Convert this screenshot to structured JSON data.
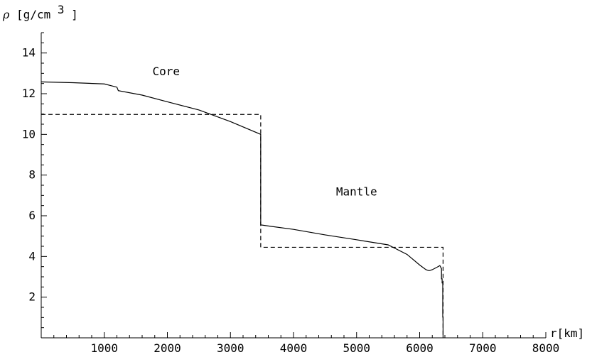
{
  "chart_data": {
    "type": "line",
    "title": "",
    "xlabel": "r[km]",
    "ylabel": {
      "symbol": "ρ",
      "unit_prefix": "[g/cm",
      "unit_exponent": "3",
      "unit_suffix": "]"
    },
    "xlim": [
      0,
      8000
    ],
    "ylim": [
      0,
      15
    ],
    "xticks": [
      1000,
      2000,
      3000,
      4000,
      5000,
      6000,
      7000,
      8000
    ],
    "yticks": [
      2,
      4,
      6,
      8,
      10,
      12,
      14
    ],
    "annotations": [
      {
        "text": "Core",
        "x": 1980,
        "y": 12.9
      },
      {
        "text": "Mantle",
        "x": 5000,
        "y": 7.0
      }
    ],
    "series": [
      {
        "style": "solid",
        "color": "#000000",
        "points": [
          [
            0,
            12.58
          ],
          [
            500,
            12.54
          ],
          [
            1000,
            12.48
          ],
          [
            1200,
            12.32
          ],
          [
            1222,
            12.15
          ],
          [
            1600,
            11.93
          ],
          [
            2000,
            11.6
          ],
          [
            2500,
            11.2
          ],
          [
            3000,
            10.63
          ],
          [
            3480,
            10.0
          ],
          [
            3480,
            5.55
          ],
          [
            4000,
            5.33
          ],
          [
            4500,
            5.06
          ],
          [
            5000,
            4.82
          ],
          [
            5500,
            4.57
          ],
          [
            5800,
            4.1
          ],
          [
            6000,
            3.58
          ],
          [
            6100,
            3.35
          ],
          [
            6150,
            3.3
          ],
          [
            6200,
            3.35
          ],
          [
            6280,
            3.48
          ],
          [
            6320,
            3.55
          ],
          [
            6346,
            3.4
          ],
          [
            6346,
            2.9
          ],
          [
            6356,
            2.9
          ],
          [
            6356,
            2.7
          ],
          [
            6366,
            2.7
          ],
          [
            6366,
            1.02
          ],
          [
            6371,
            1.02
          ],
          [
            6371,
            0
          ]
        ]
      },
      {
        "style": "dashed",
        "color": "#000000",
        "points": [
          [
            0,
            10.98
          ],
          [
            3480,
            10.98
          ],
          [
            3480,
            4.45
          ],
          [
            6371,
            4.45
          ],
          [
            6371,
            0
          ]
        ]
      }
    ]
  }
}
